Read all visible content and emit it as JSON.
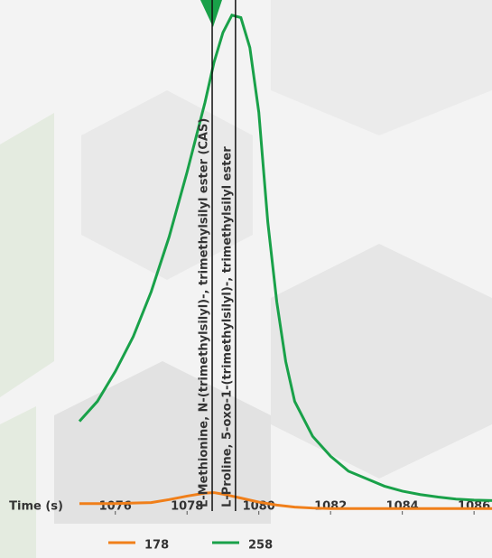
{
  "chart_data": {
    "type": "line",
    "x_label": "Time (s)",
    "x": [
      1075,
      1075.5,
      1076,
      1076.5,
      1077,
      1077.5,
      1078,
      1078.5,
      1078.75,
      1079,
      1079.25,
      1079.5,
      1079.75,
      1080,
      1080.25,
      1080.5,
      1080.75,
      1081,
      1081.5,
      1082,
      1082.5,
      1083,
      1083.5,
      1084,
      1084.5,
      1085,
      1085.5,
      1086,
      1086.5
    ],
    "series": [
      {
        "name": "178",
        "color": "#f07f1a",
        "values": [
          1.5,
          1.5,
          1.5,
          1.6,
          1.7,
          2.3,
          3.0,
          3.6,
          3.7,
          3.4,
          3.0,
          2.6,
          2.2,
          1.8,
          1.5,
          1.2,
          1.0,
          0.8,
          0.6,
          0.5,
          0.5,
          0.5,
          0.5,
          0.5,
          0.5,
          0.5,
          0.5,
          0.5,
          0.5
        ]
      },
      {
        "name": "258",
        "color": "#19a149",
        "values": [
          18,
          22,
          28,
          35,
          44,
          55,
          68,
          82,
          90,
          96,
          99.5,
          99,
          93,
          80,
          58,
          42,
          30,
          22,
          15,
          11,
          8,
          6.5,
          5,
          4,
          3.3,
          2.8,
          2.4,
          2.2,
          2.1
        ]
      }
    ],
    "markers": [
      {
        "x": 1078.7,
        "label": "L-Methionine, N-(trimethylsilyl)-, trimethylsilyl ester (CAS)"
      },
      {
        "x": 1079.35,
        "label": "L-Proline, 5-oxo-1-(trimethylsilyl)-, trimethylsilyl ester"
      }
    ],
    "xlim": [
      1075,
      1086.5
    ],
    "xticks": [
      1076,
      1078,
      1080,
      1082,
      1084,
      1086
    ],
    "ylim": [
      0,
      100
    ]
  }
}
